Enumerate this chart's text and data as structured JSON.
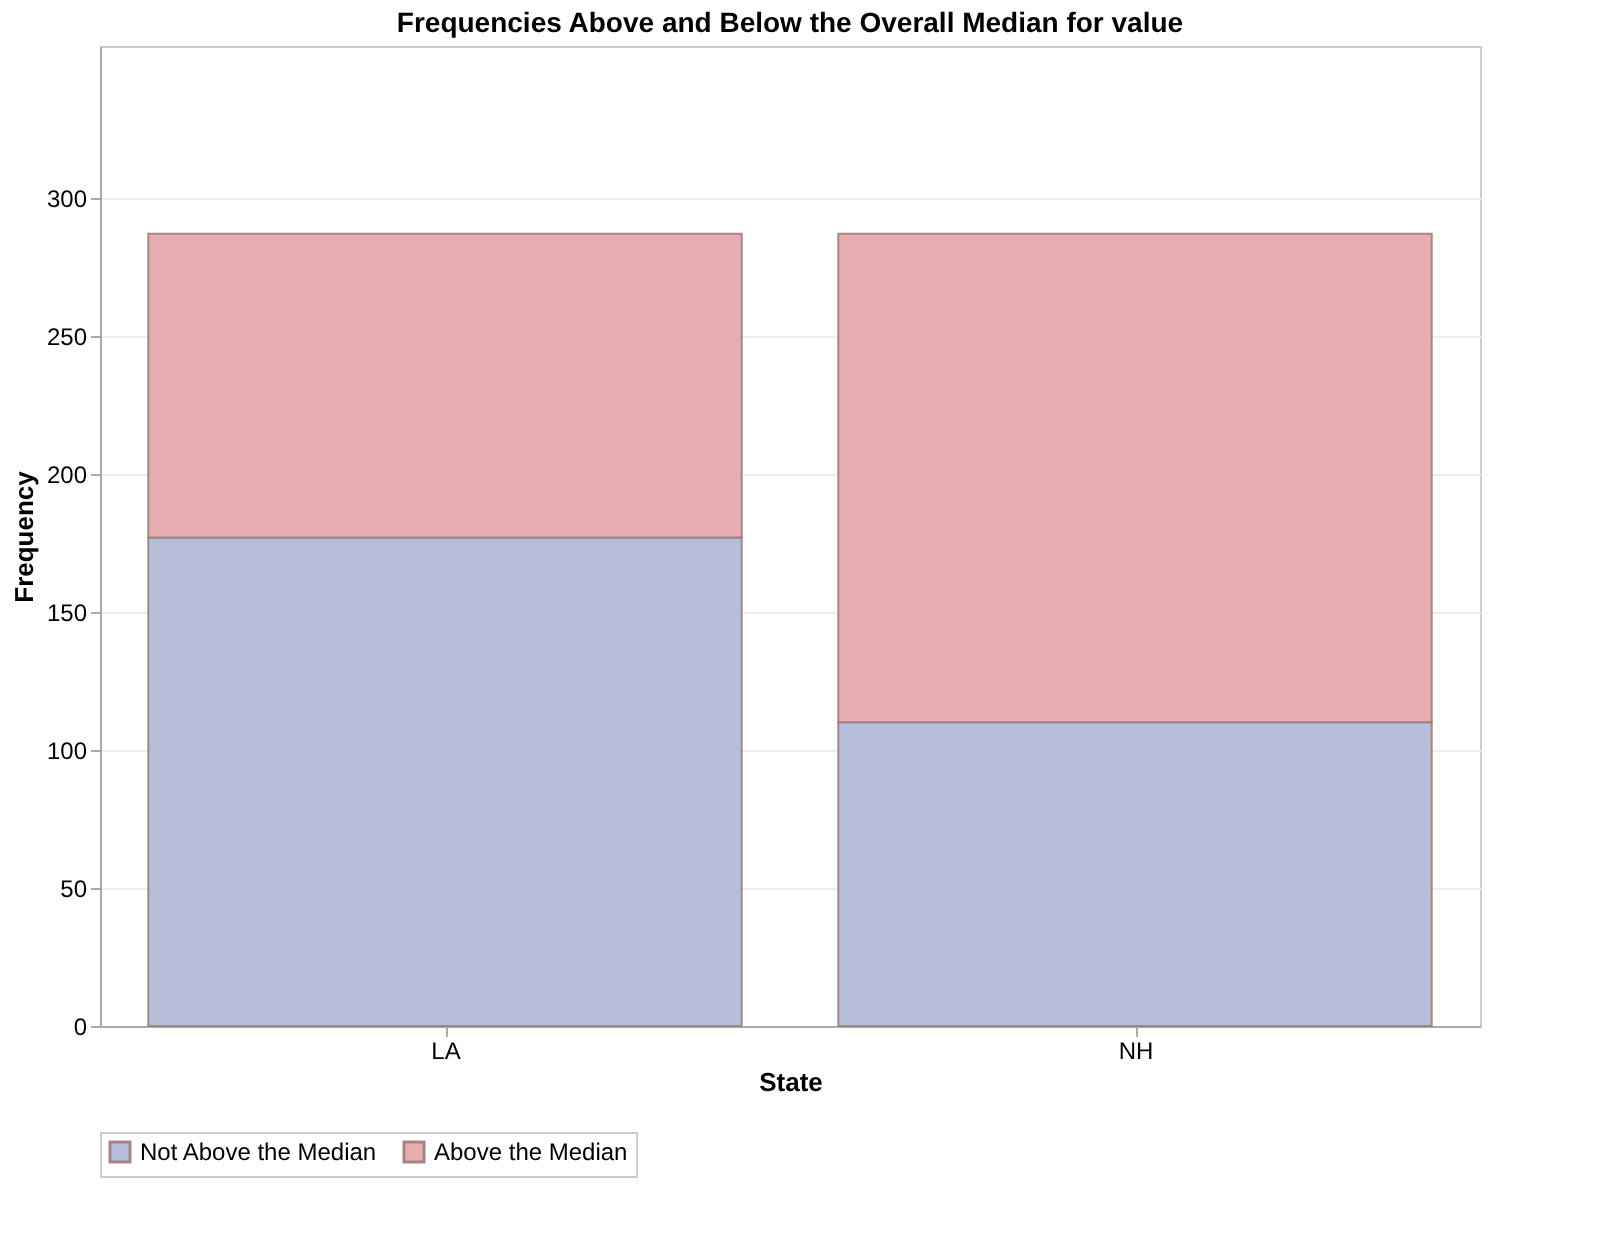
{
  "chart_data": {
    "type": "bar",
    "title": "Frequencies Above and Below the Overall Median for value",
    "xlabel": "State",
    "ylabel": "Frequency",
    "categories": [
      "LA",
      "NH"
    ],
    "stacked": true,
    "series": [
      {
        "name": "Not Above the Median",
        "color": "#b4bbd9",
        "values": [
          177,
          110
        ]
      },
      {
        "name": "Above the Median",
        "color": "#e6a9ab",
        "values": [
          110,
          177
        ]
      }
    ],
    "ylim": [
      0,
      355
    ],
    "yticks": [
      0,
      50,
      100,
      150,
      200,
      250,
      300
    ],
    "grid": "y",
    "legend": "bottom"
  }
}
